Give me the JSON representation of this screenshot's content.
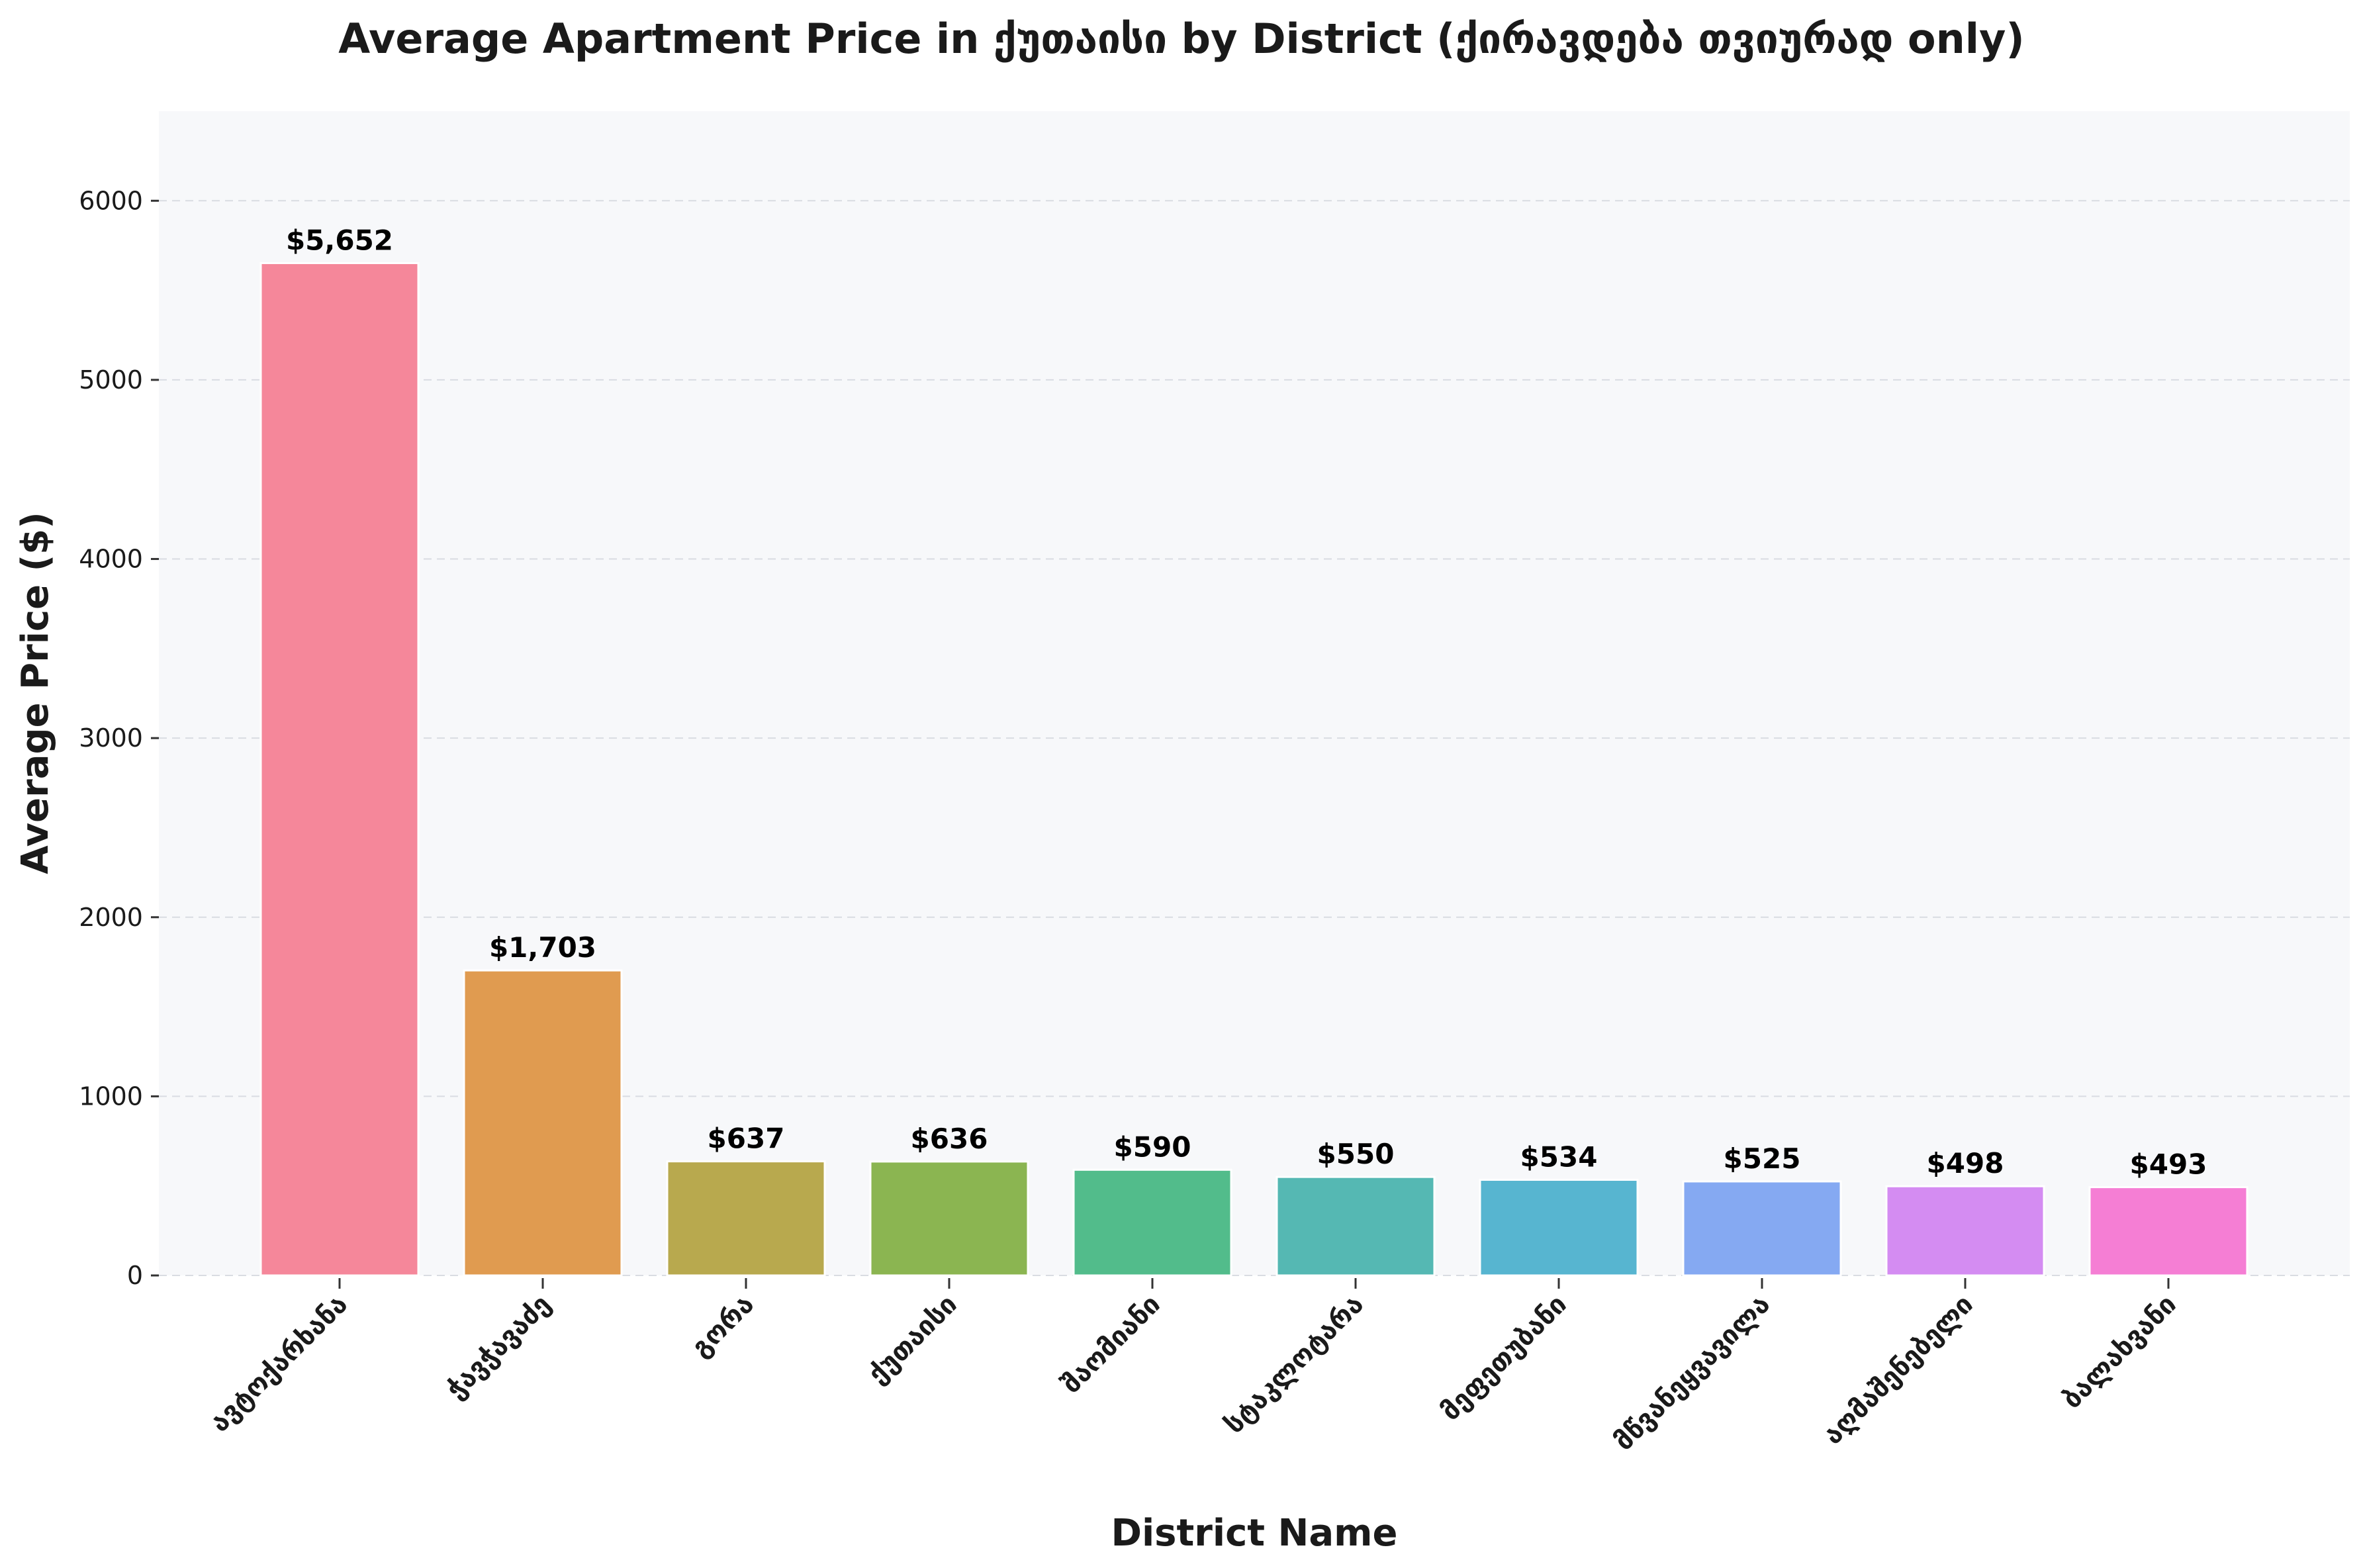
{
  "chart_data": {
    "type": "bar",
    "title": "Average Apartment Price in ქუთაისი by District (ქირავდება თვიურად only)",
    "xlabel": "District Name",
    "ylabel": "Average Price ($)",
    "ylim": [
      0,
      6500
    ],
    "yticks": [
      0,
      1000,
      2000,
      3000,
      4000,
      5000,
      6000
    ],
    "grid": "y-dashed",
    "categories": [
      "ავტოქარხანა",
      "ჭავჭავაძე",
      "გორა",
      "ქუთაისი",
      "შაომიანი",
      "სტაკლოტარა",
      "მეფეთუბანი",
      "მწვანეყვავილა",
      "აღმაშენებელი",
      "ბალახვანი"
    ],
    "values": [
      5652,
      1703,
      637,
      636,
      590,
      550,
      534,
      525,
      498,
      493
    ],
    "value_labels": [
      "$5,652",
      "$1,703",
      "$637",
      "$636",
      "$590",
      "$550",
      "$534",
      "$525",
      "$498",
      "$493"
    ],
    "colors": [
      "#f5879a",
      "#e09b50",
      "#b8a94e",
      "#8bb551",
      "#52bc8b",
      "#55b8b3",
      "#57b5d0",
      "#85a9f2",
      "#d48cf2",
      "#f57ed4"
    ],
    "plot_background": "#f7f8fa"
  }
}
